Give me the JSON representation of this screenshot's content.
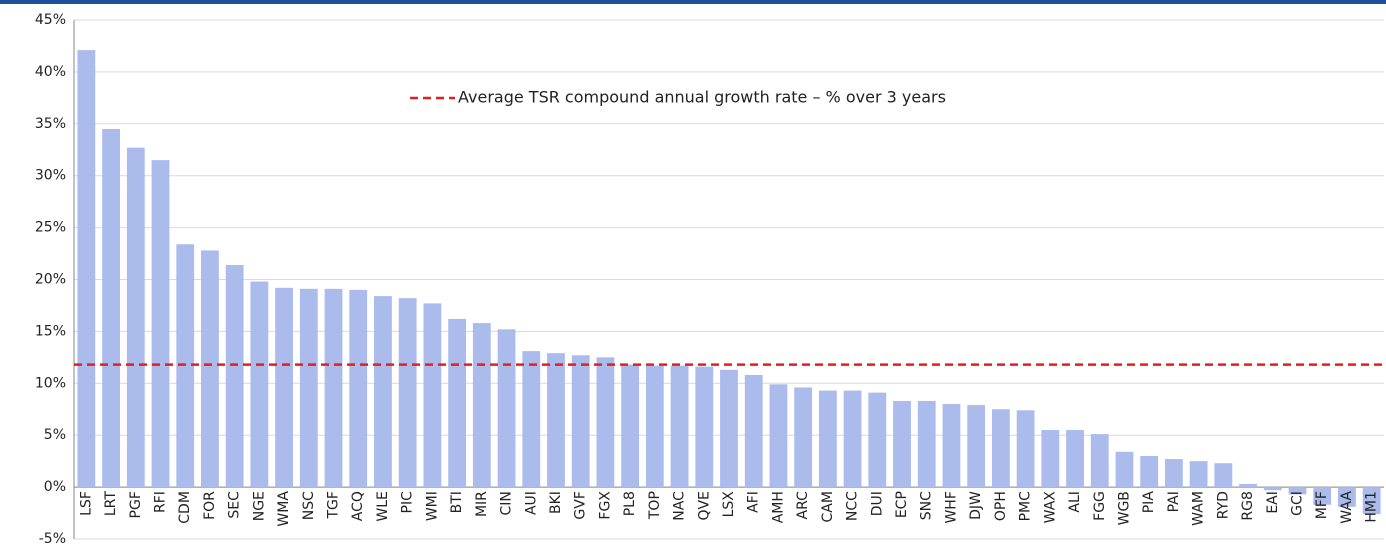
{
  "chart_data": {
    "type": "bar",
    "categories": [
      "LSF",
      "LRT",
      "PGF",
      "RFI",
      "CDM",
      "FOR",
      "SEC",
      "NGE",
      "WMA",
      "NSC",
      "TGF",
      "ACQ",
      "WLE",
      "PIC",
      "WMI",
      "BTI",
      "MIR",
      "CIN",
      "AUI",
      "BKI",
      "GVF",
      "FGX",
      "PL8",
      "TOP",
      "NAC",
      "QVE",
      "LSX",
      "AFI",
      "AMH",
      "ARC",
      "CAM",
      "NCC",
      "DUI",
      "ECP",
      "SNC",
      "WHF",
      "DJW",
      "OPH",
      "PMC",
      "WAX",
      "ALI",
      "FGG",
      "WGB",
      "PIA",
      "PAI",
      "WAM",
      "RYD",
      "RG8",
      "EAI",
      "GCI",
      "MFF",
      "WAA",
      "HM1"
    ],
    "values": [
      42.1,
      34.5,
      32.7,
      31.5,
      23.4,
      22.8,
      21.4,
      19.8,
      19.2,
      19.1,
      19.1,
      19.0,
      18.4,
      18.2,
      17.7,
      16.2,
      15.8,
      15.2,
      13.1,
      12.9,
      12.7,
      12.5,
      11.8,
      11.7,
      11.7,
      11.6,
      11.3,
      10.8,
      9.9,
      9.6,
      9.3,
      9.3,
      9.1,
      8.3,
      8.3,
      8.0,
      7.9,
      7.5,
      7.4,
      5.5,
      5.5,
      5.1,
      3.4,
      3.0,
      2.7,
      2.5,
      2.3,
      0.3,
      -0.3,
      -0.7,
      -1.7,
      -1.9,
      -2.6
    ],
    "color": "#aabbec",
    "average": {
      "name": "Average TSR compound annual growth rate – % over 3 years",
      "value": 11.8,
      "color": "#e02020"
    },
    "ylim": [
      -5,
      45
    ],
    "yticks": [
      {
        "value": -5,
        "label": "-5%"
      },
      {
        "value": 0,
        "label": "0%"
      },
      {
        "value": 5,
        "label": "5%"
      },
      {
        "value": 10,
        "label": "10%"
      },
      {
        "value": 15,
        "label": "15%"
      },
      {
        "value": 20,
        "label": "20%"
      },
      {
        "value": 25,
        "label": "25%"
      },
      {
        "value": 30,
        "label": "30%"
      },
      {
        "value": 35,
        "label": "35%"
      },
      {
        "value": 40,
        "label": "40%"
      },
      {
        "value": 45,
        "label": "45%"
      }
    ],
    "grid": true
  }
}
